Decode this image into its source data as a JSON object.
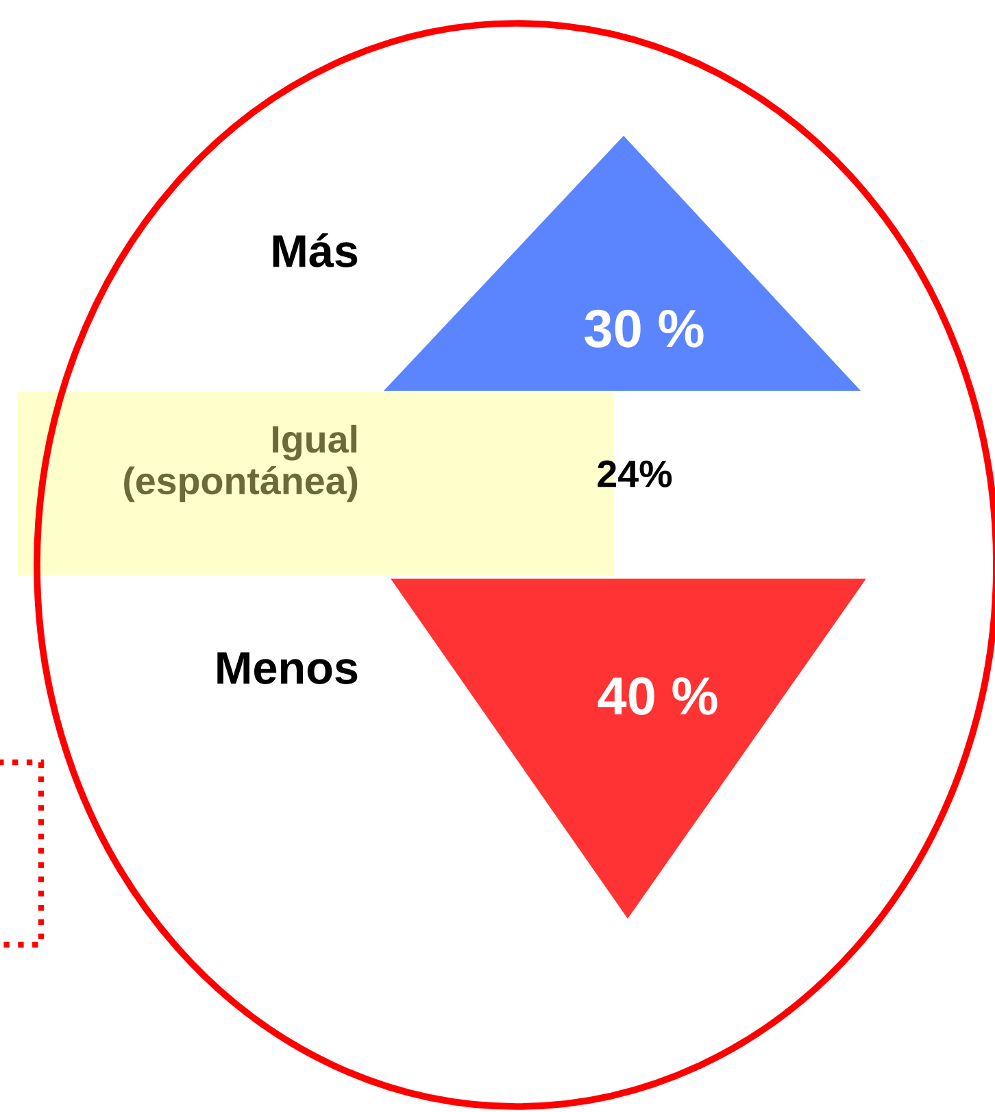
{
  "chart_data": {
    "type": "other",
    "categories": [
      "Más",
      "Igual\n(espontánea)",
      "Menos"
    ],
    "values": [
      30,
      24,
      40
    ],
    "value_labels": [
      "30 %",
      "24%",
      "40 %"
    ],
    "colors": [
      "#5b84ff",
      "#ffffcc",
      "#ff3333"
    ]
  }
}
